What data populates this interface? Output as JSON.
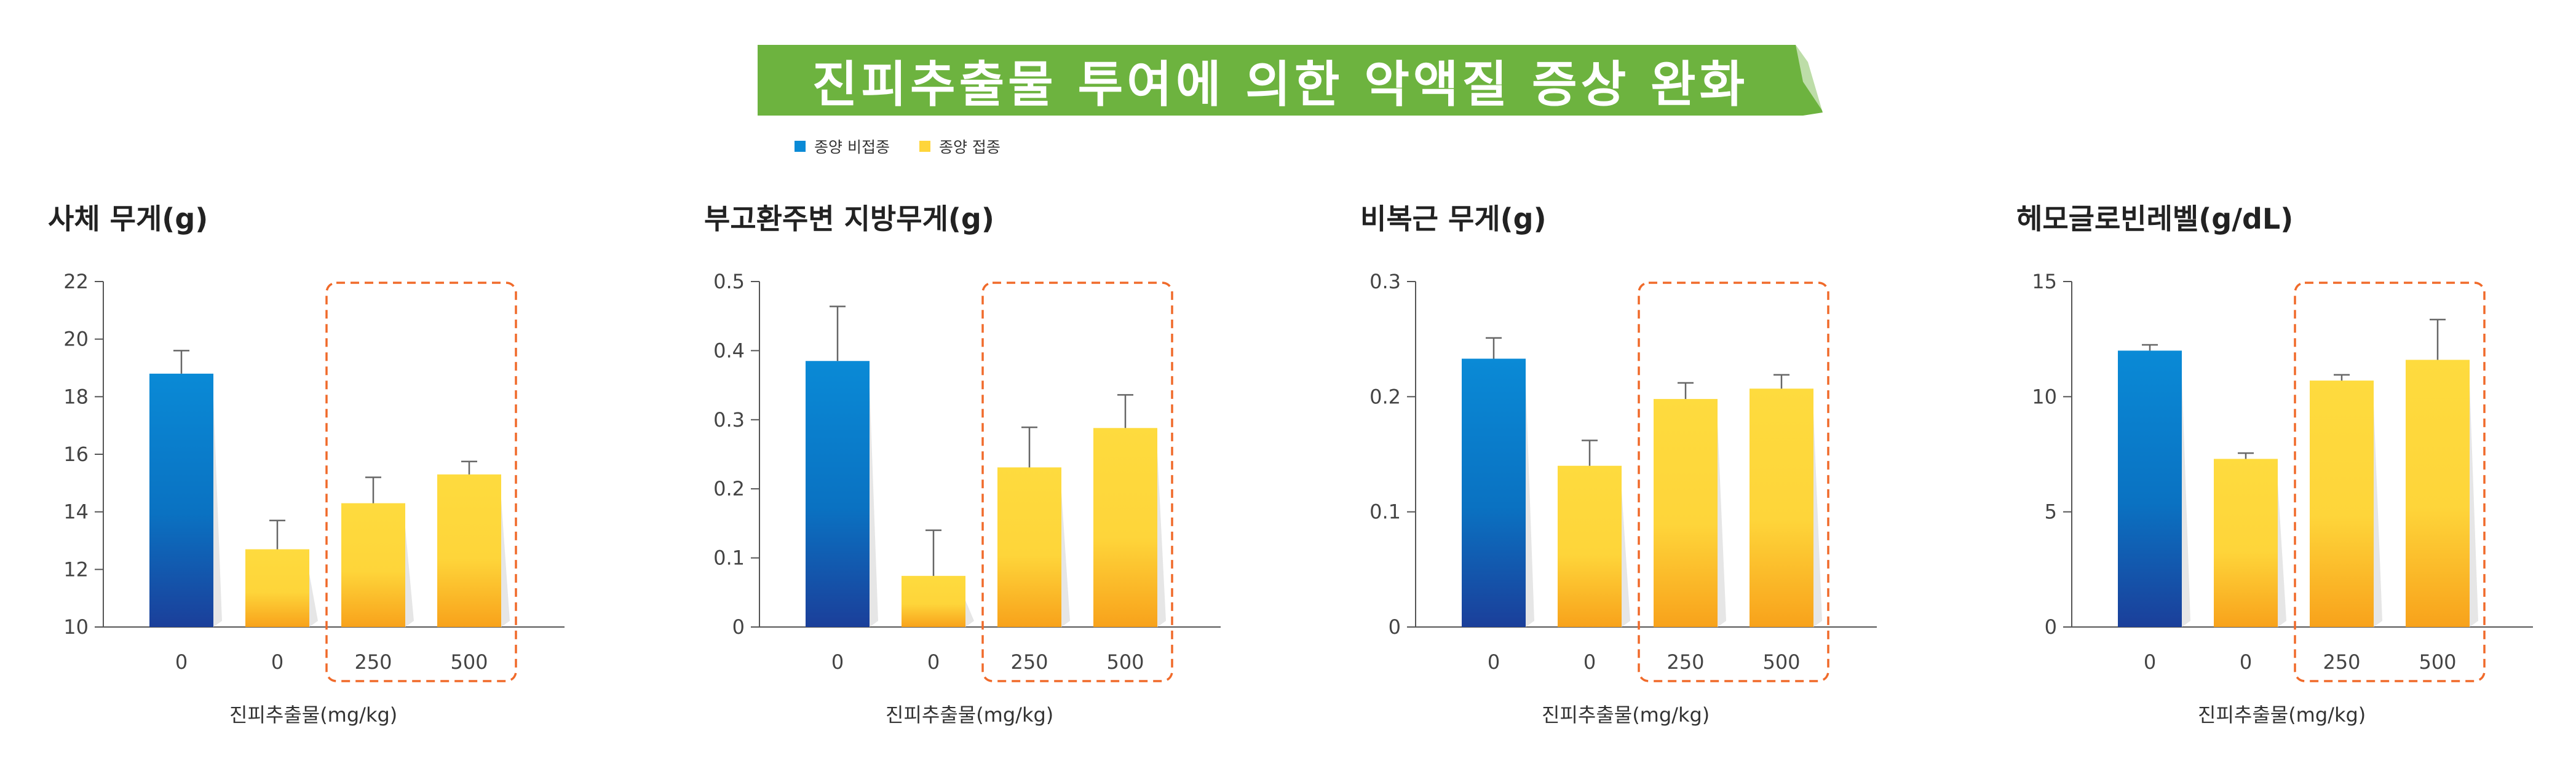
{
  "title": "진피추출물 투여에 의한 악액질 증상 완화",
  "legend": {
    "non_implanted": "종양 비접종",
    "implanted": "종양 접종"
  },
  "colors": {
    "banner": "#6db33f",
    "blue_top": "#0a8ad6",
    "blue_bottom": "#1b3f9a",
    "yellow_top": "#fedb3e",
    "yellow_bottom": "#f8a21b",
    "highlight_box": "#f06a2a"
  },
  "x_axis_label": "진피추출물(mg/kg)",
  "chart_data": [
    {
      "type": "bar",
      "title": "사체 무게(g)",
      "categories": [
        "0",
        "0",
        "250",
        "500"
      ],
      "groups": [
        "non_implanted",
        "implanted",
        "implanted",
        "implanted"
      ],
      "values": [
        18.8,
        12.7,
        14.3,
        15.3
      ],
      "errors": [
        0.8,
        1.0,
        0.9,
        0.45
      ],
      "ylim": [
        10,
        22
      ],
      "yticks": [
        10,
        12,
        14,
        16,
        18,
        20,
        22
      ],
      "ytick_labels": [
        "10",
        "12",
        "14",
        "16",
        "18",
        "20",
        "22"
      ],
      "xlabel": "진피추출물(mg/kg)",
      "highlight": [
        2,
        3
      ]
    },
    {
      "type": "bar",
      "title": "부고환주변 지방무게(g)",
      "categories": [
        "0",
        "0",
        "250",
        "500"
      ],
      "groups": [
        "non_implanted",
        "implanted",
        "implanted",
        "implanted"
      ],
      "values": [
        0.385,
        0.074,
        0.231,
        0.288
      ],
      "errors": [
        0.079,
        0.066,
        0.058,
        0.048
      ],
      "ylim": [
        0,
        0.5
      ],
      "yticks": [
        0,
        0.1,
        0.2,
        0.3,
        0.4,
        0.5
      ],
      "ytick_labels": [
        "0",
        "0.1",
        "0.2",
        "0.3",
        "0.4",
        "0.5"
      ],
      "xlabel": "진피추출물(mg/kg)",
      "highlight": [
        2,
        3
      ]
    },
    {
      "type": "bar",
      "title": "비복근 무게(g)",
      "categories": [
        "0",
        "0",
        "250",
        "500"
      ],
      "groups": [
        "non_implanted",
        "implanted",
        "implanted",
        "implanted"
      ],
      "values": [
        0.233,
        0.14,
        0.198,
        0.207
      ],
      "errors": [
        0.018,
        0.022,
        0.014,
        0.012
      ],
      "ylim": [
        0,
        0.3
      ],
      "yticks": [
        0,
        0.1,
        0.2,
        0.3
      ],
      "ytick_labels": [
        "0",
        "0.1",
        "0.2",
        "0.3"
      ],
      "xlabel": "진피추출물(mg/kg)",
      "highlight": [
        2,
        3
      ]
    },
    {
      "type": "bar",
      "title": "헤모글로빈레벨(g/dL)",
      "categories": [
        "0",
        "0",
        "250",
        "500"
      ],
      "groups": [
        "non_implanted",
        "implanted",
        "implanted",
        "implanted"
      ],
      "values": [
        12.0,
        7.3,
        10.7,
        11.6
      ],
      "errors": [
        0.25,
        0.25,
        0.25,
        1.75
      ],
      "ylim": [
        0,
        15
      ],
      "yticks": [
        0,
        5,
        10,
        15
      ],
      "ytick_labels": [
        "0",
        "5",
        "10",
        "15"
      ],
      "xlabel": "진피추출물(mg/kg)",
      "highlight": [
        2,
        3
      ]
    }
  ]
}
